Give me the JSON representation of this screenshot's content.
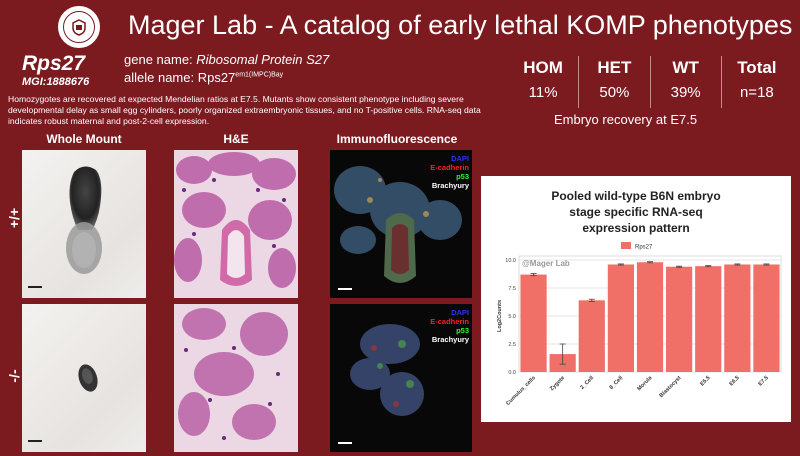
{
  "header": {
    "title": "Mager Lab - A catalog of early lethal KOMP phenotypes",
    "logo_icon": "university-seal-icon"
  },
  "gene": {
    "symbol": "Rps27",
    "mgi": "MGI:1888676",
    "name_label": "gene name: ",
    "name_value": "Ribosomal Protein S27",
    "allele_label": "allele name: Rps27",
    "allele_sup": "em1(IMPC)Bay"
  },
  "summary": "Homozygotes are recovered at expected Mendelian ratios at E7.5. Mutants show consistent phenotype including severe developmental delay as small egg cylinders, poorly organized extraembryonic tissues, and no T-positive cells. RNA-seq data indicates robust maternal and post-2-cell expression.",
  "stats": {
    "columns": [
      {
        "head": "HOM",
        "value": "11%"
      },
      {
        "head": "HET",
        "value": "50%"
      },
      {
        "head": "WT",
        "value": "39%"
      },
      {
        "head": "Total",
        "value": "n=18"
      }
    ],
    "caption": "Embryo recovery at E7.5"
  },
  "images": {
    "col_heads": [
      "Whole Mount",
      "H&E",
      "Immunofluorescence"
    ],
    "row_labels": [
      "+/+",
      "-/-"
    ],
    "if_legend": [
      {
        "label": "DAPI",
        "color": "#2233ff"
      },
      {
        "label": "E-cadherin",
        "color": "#ff2020"
      },
      {
        "label": "p53",
        "color": "#22ff22"
      },
      {
        "label": "Brachyury",
        "color": "#ffffff"
      }
    ]
  },
  "chart_data": {
    "type": "bar",
    "title_lines": [
      "Pooled wild-type B6N embryo",
      "stage specific RNA-seq",
      "expression pattern"
    ],
    "watermark": "@Mager Lab",
    "legend": "Rps27",
    "series": [
      {
        "name": "Rps27",
        "color": "#f07068"
      }
    ],
    "ylabel": "Log2Counts",
    "ylim": [
      0,
      10
    ],
    "yticks": [
      "0.0",
      "2.5",
      "5.0",
      "7.5",
      "10.0"
    ],
    "categories": [
      "Cumulus_cells",
      "Zygote",
      "2_Cell",
      "8_Cell",
      "Morula",
      "Blastocyst",
      "E5.5",
      "E6.5",
      "E7.5"
    ],
    "values": [
      8.7,
      1.6,
      6.4,
      9.6,
      9.8,
      9.4,
      9.45,
      9.6,
      9.6
    ],
    "errors": [
      0.1,
      0.9,
      0.1,
      0.05,
      0.05,
      0.05,
      0.05,
      0.05,
      0.05
    ]
  }
}
